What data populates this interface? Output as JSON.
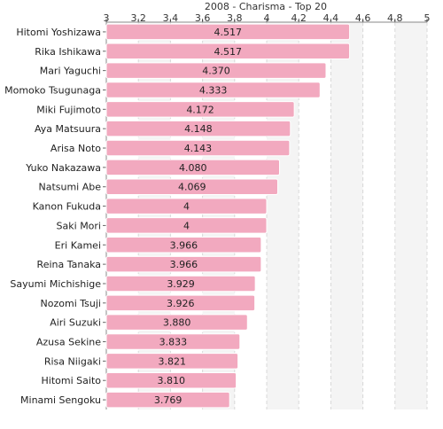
{
  "chart_data": {
    "type": "bar",
    "orientation": "horizontal",
    "title": "2008 - Charisma - Top 20",
    "xlim": [
      3,
      5
    ],
    "ticks": [
      "3",
      "3.2",
      "3.4",
      "3.6",
      "3.8",
      "4",
      "4.2",
      "4.4",
      "4.6",
      "4.8",
      "5"
    ],
    "grid": true,
    "bar_color": "#f2a9bf",
    "bar_edge_color": "#ffffff",
    "alt_band_color": "#f4f4f4",
    "categories": [
      "Hitomi Yoshizawa",
      "Rika Ishikawa",
      "Mari Yaguchi",
      "Momoko Tsugunaga",
      "Miki Fujimoto",
      "Aya Matsuura",
      "Arisa Noto",
      "Yuko Nakazawa",
      "Natsumi Abe",
      "Kanon Fukuda",
      "Saki Mori",
      "Eri Kamei",
      "Reina Tanaka",
      "Sayumi Michishige",
      "Nozomi Tsuji",
      "Airi Suzuki",
      "Azusa Sekine",
      "Risa Niigaki",
      "Hitomi Saito",
      "Minami Sengoku"
    ],
    "values": [
      4.517,
      4.517,
      4.37,
      4.333,
      4.172,
      4.148,
      4.143,
      4.08,
      4.069,
      4,
      4,
      3.966,
      3.966,
      3.929,
      3.926,
      3.88,
      3.833,
      3.821,
      3.81,
      3.769
    ],
    "value_labels": [
      "4.517",
      "4.517",
      "4.370",
      "4.333",
      "4.172",
      "4.148",
      "4.143",
      "4.080",
      "4.069",
      "4",
      "4",
      "3.966",
      "3.966",
      "3.929",
      "3.926",
      "3.880",
      "3.833",
      "3.821",
      "3.810",
      "3.769"
    ]
  }
}
